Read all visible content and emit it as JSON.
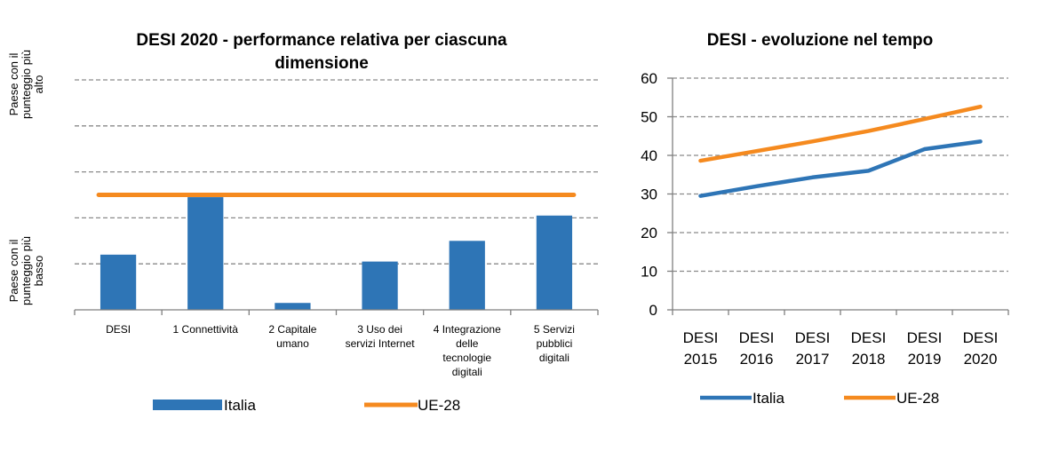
{
  "chart_data": [
    {
      "type": "bar",
      "title_lines": [
        "DESI 2020 - performance relativa per ciascuna",
        "dimensione"
      ],
      "y_top_label_lines": [
        "Paese con il",
        "punteggio più",
        "alto"
      ],
      "y_bottom_label_lines": [
        "Paese con il",
        "punteggio più",
        "basso"
      ],
      "ylim": [
        0,
        1
      ],
      "grid": true,
      "categories": [
        "DESI",
        "1 Connettività",
        "2 Capitale umano",
        "3 Uso dei servizi Internet",
        "4 Integrazione delle tecnologie digitali",
        "5 Servizi pubblici digitali"
      ],
      "category_label_lines": [
        [
          "DESI"
        ],
        [
          "1 Connettività"
        ],
        [
          "2 Capitale",
          "umano"
        ],
        [
          "3 Uso dei",
          "servizi Internet"
        ],
        [
          "4 Integrazione",
          "delle",
          "tecnologie",
          "digitali"
        ],
        [
          "5 Servizi",
          "pubblici",
          "digitali"
        ]
      ],
      "series": [
        {
          "name": "Italia",
          "type": "bar",
          "color": "#2E75B6",
          "values": [
            0.24,
            0.49,
            0.03,
            0.21,
            0.3,
            0.41
          ]
        },
        {
          "name": "UE-28",
          "type": "line",
          "color": "#F58A1F",
          "values": [
            0.5,
            0.5,
            0.5,
            0.5,
            0.5,
            0.5
          ]
        }
      ],
      "legend": [
        "Italia",
        "UE-28"
      ],
      "legend_position": "bottom"
    },
    {
      "type": "line",
      "title": "DESI - evoluzione nel tempo",
      "categories": [
        "DESI 2015",
        "DESI 2016",
        "DESI 2017",
        "DESI 2018",
        "DESI 2019",
        "DESI 2020"
      ],
      "category_label_lines": [
        [
          "DESI",
          "2015"
        ],
        [
          "DESI",
          "2016"
        ],
        [
          "DESI",
          "2017"
        ],
        [
          "DESI",
          "2018"
        ],
        [
          "DESI",
          "2019"
        ],
        [
          "DESI",
          "2020"
        ]
      ],
      "ylim": [
        0,
        60
      ],
      "yticks": [
        0,
        10,
        20,
        30,
        40,
        50,
        60
      ],
      "grid": true,
      "series": [
        {
          "name": "Italia",
          "color": "#2E75B6",
          "values": [
            29.5,
            32,
            34.3,
            36,
            41.6,
            43.6
          ]
        },
        {
          "name": "UE-28",
          "color": "#F58A1F",
          "values": [
            38.6,
            41.1,
            43.6,
            46.3,
            49.4,
            52.6
          ]
        }
      ],
      "legend": [
        "Italia",
        "UE-28"
      ],
      "legend_position": "bottom"
    }
  ]
}
